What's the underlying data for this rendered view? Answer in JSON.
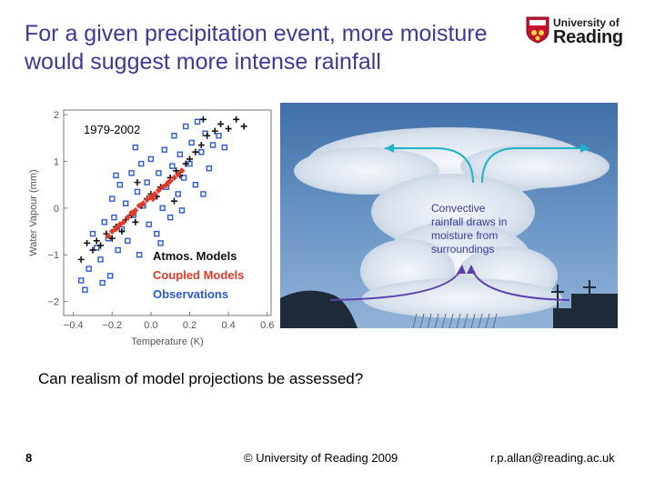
{
  "slide": {
    "title_line1": "For a given precipitation event, more moisture",
    "title_line2": "would suggest more intense rainfall",
    "question": "Can realism of model projections be assessed?",
    "page_number": "8",
    "copyright": "© University of Reading 2009",
    "email": "r.p.allan@reading.ac.uk"
  },
  "logo": {
    "line1": "University of",
    "line2": "Reading"
  },
  "photo": {
    "annotation_line1": "Convective",
    "annotation_line2": "rainfall draws in",
    "annotation_line3": "moisture from",
    "annotation_line4": "surroundings"
  },
  "chart_data": {
    "type": "scatter",
    "title": "1979-2002",
    "xlabel": "Temperature (K)",
    "ylabel": "Water Vapour (mm)",
    "xlim": [
      -0.45,
      0.62
    ],
    "ylim": [
      -2.3,
      2.1
    ],
    "x_ticks": [
      -0.4,
      -0.2,
      0.0,
      0.2,
      0.4,
      0.6
    ],
    "x_tick_labels": [
      "−0.4",
      "−0.2",
      "0.0",
      "0.2",
      "0.4",
      "0.6"
    ],
    "y_ticks": [
      -2,
      -1,
      0,
      1,
      2
    ],
    "y_tick_labels": [
      "−2",
      "−1",
      "0",
      "1",
      "2"
    ],
    "legend_position": "bottom-right",
    "series": [
      {
        "name": "Observations",
        "color": "#2a5ad8",
        "marker": "square",
        "points": [
          [
            -0.36,
            -1.55
          ],
          [
            -0.32,
            -1.3
          ],
          [
            -0.3,
            -0.55
          ],
          [
            -0.28,
            -0.85
          ],
          [
            -0.26,
            -1.1
          ],
          [
            -0.24,
            -0.3
          ],
          [
            -0.22,
            -0.65
          ],
          [
            -0.21,
            -1.45
          ],
          [
            -0.2,
            0.2
          ],
          [
            -0.19,
            -0.2
          ],
          [
            -0.17,
            -0.9
          ],
          [
            -0.16,
            0.5
          ],
          [
            -0.15,
            -0.45
          ],
          [
            -0.13,
            0.1
          ],
          [
            -0.12,
            -0.7
          ],
          [
            -0.1,
            0.75
          ],
          [
            -0.09,
            -0.15
          ],
          [
            -0.07,
            0.35
          ],
          [
            -0.06,
            -1.0
          ],
          [
            -0.05,
            0.95
          ],
          [
            -0.04,
            0.05
          ],
          [
            -0.02,
            0.55
          ],
          [
            -0.01,
            -0.35
          ],
          [
            0.0,
            1.05
          ],
          [
            0.02,
            0.25
          ],
          [
            0.03,
            -0.55
          ],
          [
            0.04,
            0.75
          ],
          [
            0.06,
            0.0
          ],
          [
            0.07,
            1.25
          ],
          [
            0.08,
            0.45
          ],
          [
            0.1,
            -0.2
          ],
          [
            0.11,
            0.9
          ],
          [
            0.12,
            1.55
          ],
          [
            0.14,
            0.3
          ],
          [
            0.15,
            1.15
          ],
          [
            0.17,
            0.65
          ],
          [
            0.18,
            1.75
          ],
          [
            0.2,
            0.95
          ],
          [
            0.21,
            1.4
          ],
          [
            0.23,
            0.5
          ],
          [
            0.24,
            1.85
          ],
          [
            0.26,
            1.2
          ],
          [
            0.28,
            1.6
          ],
          [
            0.3,
            0.85
          ],
          [
            0.32,
            1.35
          ],
          [
            0.35,
            1.55
          ],
          [
            0.38,
            1.3
          ],
          [
            -0.34,
            -1.75
          ],
          [
            -0.25,
            -1.6
          ],
          [
            -0.18,
            0.7
          ],
          [
            -0.08,
            1.3
          ],
          [
            0.05,
            -0.75
          ],
          [
            0.16,
            -0.05
          ],
          [
            0.27,
            0.3
          ]
        ]
      },
      {
        "name": "Atmos. Models",
        "color": "#111111",
        "marker": "plus",
        "points": [
          [
            -0.33,
            -0.75
          ],
          [
            -0.3,
            -0.9
          ],
          [
            -0.28,
            -0.7
          ],
          [
            -0.26,
            -0.8
          ],
          [
            -0.23,
            -0.55
          ],
          [
            -0.2,
            -0.65
          ],
          [
            -0.18,
            -0.4
          ],
          [
            -0.15,
            -0.5
          ],
          [
            -0.13,
            -0.25
          ],
          [
            -0.1,
            -0.15
          ],
          [
            -0.08,
            -0.3
          ],
          [
            -0.05,
            0.05
          ],
          [
            -0.02,
            0.2
          ],
          [
            0.0,
            0.3
          ],
          [
            0.03,
            0.25
          ],
          [
            0.05,
            0.45
          ],
          [
            0.08,
            0.5
          ],
          [
            0.1,
            0.65
          ],
          [
            0.13,
            0.8
          ],
          [
            0.15,
            0.7
          ],
          [
            0.18,
            0.95
          ],
          [
            0.2,
            1.05
          ],
          [
            0.23,
            1.2
          ],
          [
            0.26,
            1.35
          ],
          [
            0.29,
            1.55
          ],
          [
            0.33,
            1.65
          ],
          [
            0.36,
            1.8
          ],
          [
            0.4,
            1.7
          ],
          [
            0.44,
            1.9
          ],
          [
            0.48,
            1.75
          ],
          [
            -0.36,
            -1.1
          ],
          [
            0.12,
            0.15
          ],
          [
            0.27,
            1.9
          ],
          [
            -0.07,
            0.55
          ]
        ]
      },
      {
        "name": "Coupled Models",
        "color": "#e03a2a",
        "marker": "diamond",
        "points": [
          [
            -0.22,
            -0.6
          ],
          [
            -0.2,
            -0.5
          ],
          [
            -0.18,
            -0.45
          ],
          [
            -0.16,
            -0.35
          ],
          [
            -0.14,
            -0.3
          ],
          [
            -0.12,
            -0.2
          ],
          [
            -0.1,
            -0.1
          ],
          [
            -0.08,
            -0.05
          ],
          [
            -0.06,
            0.05
          ],
          [
            -0.04,
            0.1
          ],
          [
            -0.02,
            0.18
          ],
          [
            0.0,
            0.25
          ],
          [
            0.02,
            0.3
          ],
          [
            0.04,
            0.38
          ],
          [
            0.06,
            0.45
          ],
          [
            0.08,
            0.5
          ],
          [
            0.1,
            0.58
          ],
          [
            0.12,
            0.65
          ],
          [
            0.14,
            0.72
          ],
          [
            0.16,
            0.8
          ],
          [
            -0.17,
            -0.4
          ],
          [
            -0.09,
            -0.12
          ],
          [
            0.01,
            0.2
          ],
          [
            0.09,
            0.55
          ]
        ]
      }
    ]
  }
}
